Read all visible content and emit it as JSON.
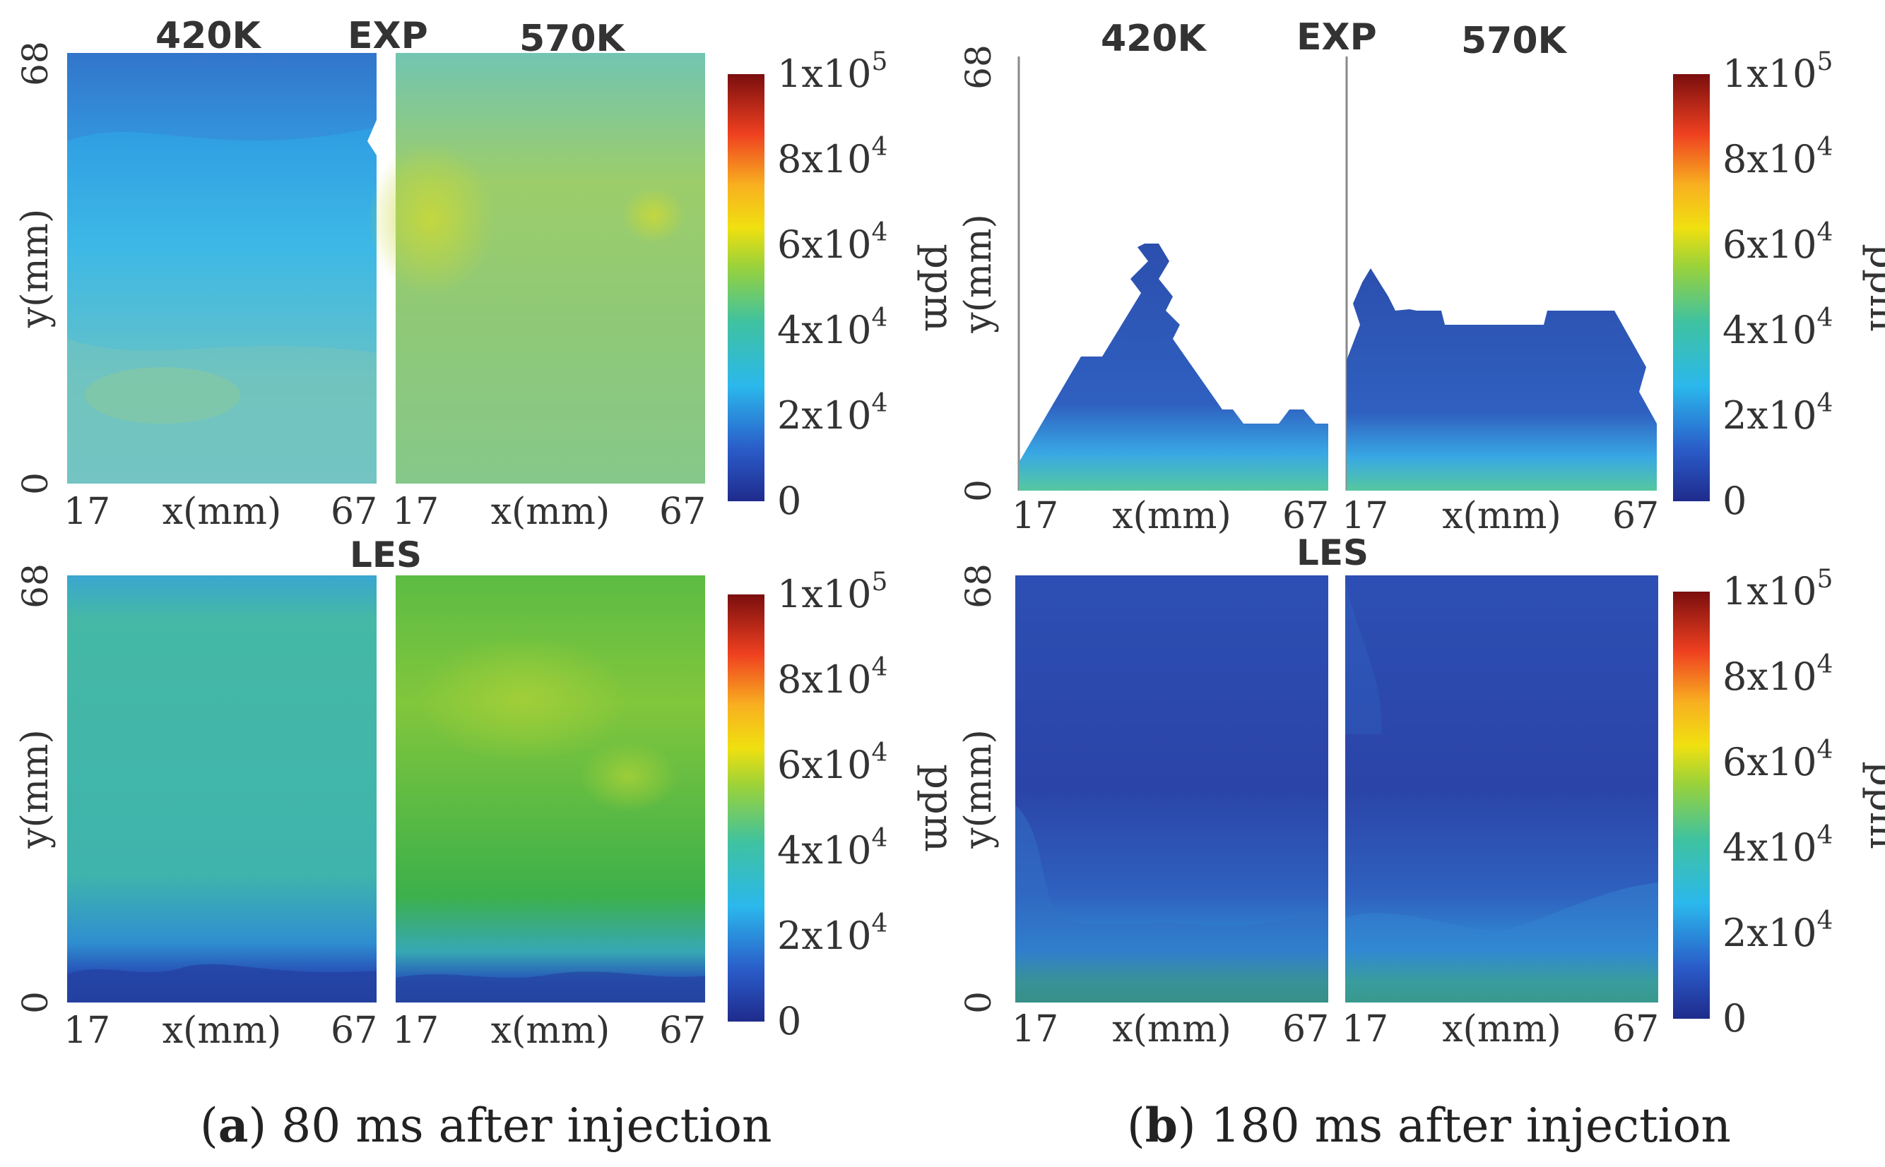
{
  "row_titles": {
    "top_left": "420K",
    "top_mid": "EXP",
    "top_right": "570K",
    "bottom_mid": "LES"
  },
  "axis": {
    "x_label": "x(mm)",
    "y_label": "y(mm)",
    "x_min": "17",
    "x_max": "67",
    "y_min": "0",
    "y_max": "68"
  },
  "colorbar": {
    "unit": "ppm",
    "tick_0": "0",
    "tick_1_base": "2x10",
    "tick_1_exp": "4",
    "tick_2_base": "4x10",
    "tick_2_exp": "4",
    "tick_3_base": "6x10",
    "tick_3_exp": "4",
    "tick_4_base": "8x10",
    "tick_4_exp": "4",
    "tick_5_base": "1x10",
    "tick_5_exp": "5",
    "range": [
      0,
      100000
    ],
    "colors": [
      "#1f2b8c",
      "#2a5bc8",
      "#2bb8ec",
      "#3fc2a0",
      "#9ad23a",
      "#f0e010",
      "#f8b020",
      "#ef4020",
      "#7a0e0e"
    ]
  },
  "captions": {
    "a_letter": "a",
    "a_text": " 80 ms after injection",
    "b_letter": "b",
    "b_text": " 180 ms after injection"
  },
  "colors": {
    "exp_420_80": "#53b6e2",
    "exp_570_80": "#86c98a",
    "les_420_80": "#3cb6b4",
    "les_570_80": "#3cb04e",
    "exp_180": "#2f5ab9",
    "les_180": "#2e46ae",
    "near_wall_180": "#3cb04e"
  }
}
